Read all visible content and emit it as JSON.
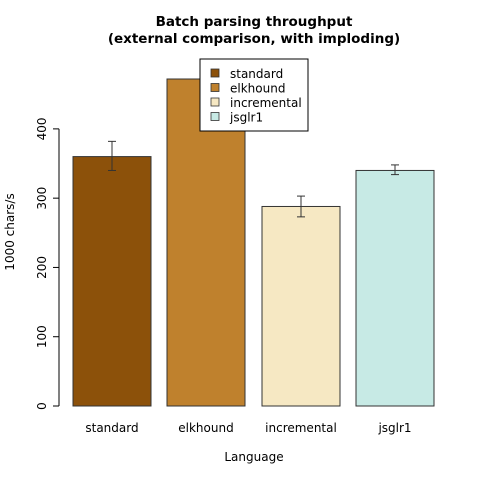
{
  "chart_data": {
    "type": "bar",
    "title_line1": "Batch parsing throughput",
    "title_line2": "(external comparison, with imploding)",
    "xlabel": "Language",
    "ylabel": "1000 chars/s",
    "categories": [
      "standard",
      "elkhound",
      "incremental",
      "jsglr1"
    ],
    "values": [
      360,
      472,
      288,
      340
    ],
    "error_low": [
      340,
      452,
      273,
      334
    ],
    "error_high": [
      382,
      492,
      303,
      348
    ],
    "colors": [
      "#8c510a",
      "#bf812d",
      "#f6e8c3",
      "#c7eae5"
    ],
    "ylim": [
      0,
      472
    ],
    "yticks": [
      0,
      100,
      200,
      300,
      400
    ],
    "grid": false,
    "legend_position": "top-right",
    "legend": [
      "standard",
      "elkhound",
      "incremental",
      "jsglr1"
    ]
  }
}
